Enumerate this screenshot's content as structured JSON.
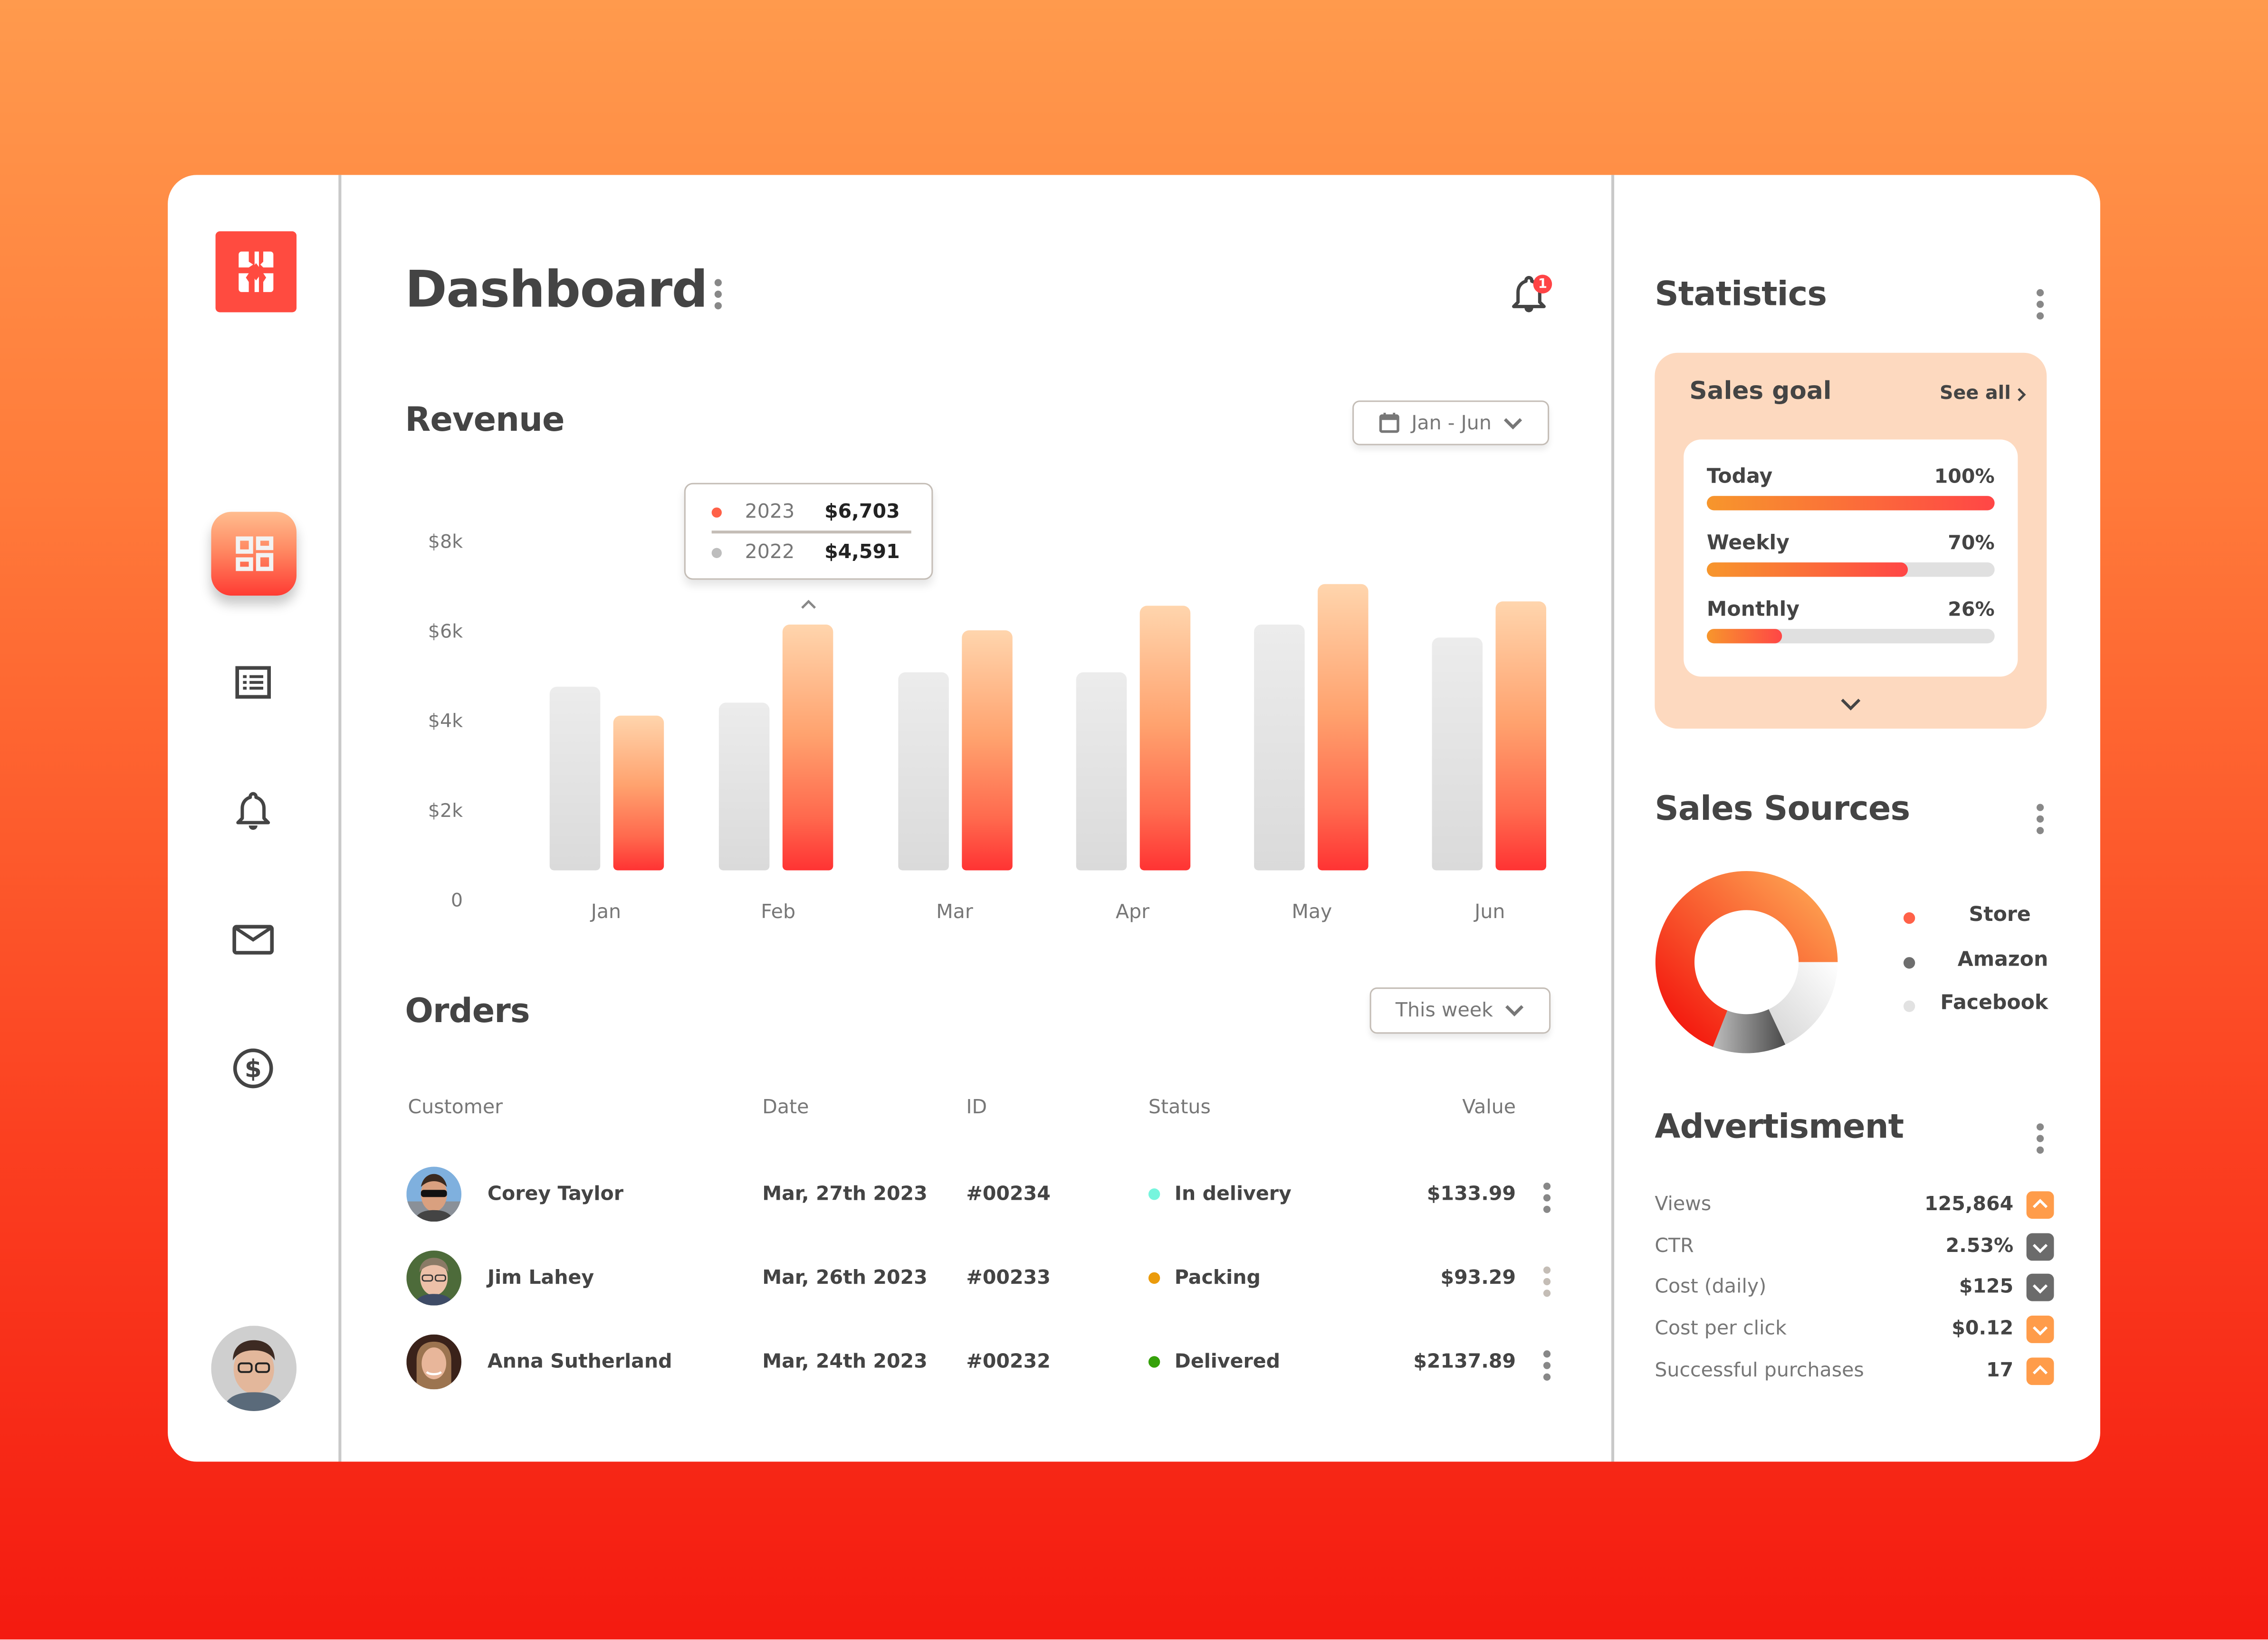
{
  "app": {
    "title": "Dashboard",
    "notification_count": "1",
    "colors": {
      "accent": "#ff4b40",
      "accent_orange": "#f7962c",
      "bar_2022": "#dddddd",
      "bar_2023_top": "#ffd5ad",
      "bar_2023_bottom": "#ff3333",
      "text_dark": "#444444",
      "text_muted": "#777777",
      "sales_goal_bg": "#fdd9bf"
    }
  },
  "sidebar": {
    "logo_icon": "logo-icon",
    "items": [
      {
        "id": "dashboard",
        "icon": "dashboard-grid-icon",
        "active": true
      },
      {
        "id": "list",
        "icon": "list-icon",
        "active": false
      },
      {
        "id": "notifications",
        "icon": "bell-icon",
        "active": false
      },
      {
        "id": "messages",
        "icon": "mail-icon",
        "active": false
      },
      {
        "id": "finance",
        "icon": "dollar-circle-icon",
        "active": false
      }
    ],
    "user_avatar": "user-avatar"
  },
  "revenue": {
    "title": "Revenue",
    "range_label": "Jan - Jun",
    "tooltip": {
      "rows": [
        {
          "year": "2023",
          "value": "$6,703",
          "color": "#ff6148"
        },
        {
          "year": "2022",
          "value": "$4,591",
          "color": "#bdbdbd"
        }
      ]
    },
    "y_ticks": [
      "$8k",
      "$6k",
      "$4k",
      "$2k",
      "0"
    ],
    "months": [
      "Jan",
      "Feb",
      "Mar",
      "Apr",
      "May",
      "Jun"
    ]
  },
  "chart_data": {
    "type": "bar",
    "title": "Revenue",
    "categories": [
      "Jan",
      "Feb",
      "Mar",
      "Apr",
      "May",
      "Jun"
    ],
    "series": [
      {
        "name": "2022",
        "values": [
          4990,
          4591,
          5420,
          5420,
          6700,
          6350
        ]
      },
      {
        "name": "2023",
        "values": [
          4230,
          6703,
          6550,
          7200,
          7790,
          7350
        ]
      }
    ],
    "xlabel": "",
    "ylabel": "",
    "y_tick_labels": [
      "0",
      "$2k",
      "$4k",
      "$6k",
      "$8k"
    ],
    "ylim": [
      0,
      8000
    ],
    "grid": false,
    "legend": "tooltip (Feb highlighted)",
    "highlight": {
      "category": "Feb",
      "2023": "$6,703",
      "2022": "$4,591"
    }
  },
  "orders": {
    "title": "Orders",
    "filter_label": "This week",
    "columns": [
      "Customer",
      "Date",
      "ID",
      "Status",
      "Value"
    ],
    "rows": [
      {
        "customer": "Corey Taylor",
        "date": "Mar, 27th 2023",
        "id": "#00234",
        "status": "In delivery",
        "status_color": "#76f5dd",
        "value": "$133.99"
      },
      {
        "customer": "Jim Lahey",
        "date": "Mar, 26th 2023",
        "id": "#00233",
        "status": "Packing",
        "status_color": "#eb9b0c",
        "value": "$93.29"
      },
      {
        "customer": "Anna Sutherland",
        "date": "Mar, 24th 2023",
        "id": "#00232",
        "status": "Delivered",
        "status_color": "#35a10a",
        "value": "$2137.89"
      }
    ]
  },
  "statistics": {
    "title": "Statistics",
    "sales_goal": {
      "title": "Sales goal",
      "see_all": "See all",
      "items": [
        {
          "label": "Today",
          "pct": "100%",
          "value": 100
        },
        {
          "label": "Weekly",
          "pct": "70%",
          "value": 70
        },
        {
          "label": "Monthly",
          "pct": "26%",
          "value": 26
        }
      ]
    },
    "sales_sources": {
      "title": "Sales Sources",
      "segments": [
        {
          "label": "Store",
          "value": 69,
          "color": "#ff6148"
        },
        {
          "label": "Amazon",
          "value": 13,
          "color": "#6e6e6e"
        },
        {
          "label": "Facebook",
          "value": 18,
          "color": "#e2e2e2"
        }
      ]
    },
    "advertisment": {
      "title": "Advertisment",
      "rows": [
        {
          "label": "Views",
          "value": "125,864",
          "trend": "up",
          "badge_color": "#ff9c4a"
        },
        {
          "label": "CTR",
          "value": "2.53%",
          "trend": "down",
          "badge_color": "#6b6b6b"
        },
        {
          "label": "Cost (daily)",
          "value": "$125",
          "trend": "down",
          "badge_color": "#6b6b6b"
        },
        {
          "label": "Cost per click",
          "value": "$0.12",
          "trend": "down",
          "badge_color": "#ff9c4a"
        },
        {
          "label": "Successful purchases",
          "value": "17",
          "trend": "up",
          "badge_color": "#ff9c4a"
        }
      ]
    }
  }
}
